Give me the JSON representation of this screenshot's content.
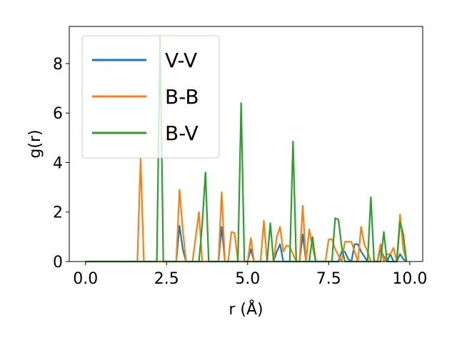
{
  "chart_data": {
    "type": "line",
    "title": "",
    "xlabel": "r (Å)",
    "ylabel": "g(r)",
    "xlim": [
      -0.5,
      10.4
    ],
    "ylim": [
      0,
      9.5
    ],
    "xticks": [
      0.0,
      2.5,
      5.0,
      7.5,
      10.0
    ],
    "xtick_labels": [
      "0.0",
      "2.5",
      "5.0",
      "7.5",
      "10.0"
    ],
    "yticks": [
      0,
      2,
      4,
      6,
      8
    ],
    "ytick_labels": [
      "0",
      "2",
      "4",
      "6",
      "8"
    ],
    "grid": false,
    "legend_position": "top-left",
    "series": [
      {
        "name": "V-V",
        "color": "#1f77b4",
        "x": [
          0.0,
          2.8,
          2.9,
          3.0,
          3.1,
          4.1,
          4.2,
          4.3,
          5.0,
          5.1,
          5.2,
          5.8,
          5.9,
          6.0,
          6.1,
          6.6,
          6.7,
          6.8,
          7.8,
          7.9,
          8.0,
          8.1,
          8.2,
          8.3,
          8.4,
          8.5,
          8.6,
          8.7,
          8.8,
          9.0,
          9.1,
          9.2,
          9.3,
          9.4,
          9.5,
          9.6,
          9.7,
          9.8,
          9.9
        ],
        "y": [
          0.0,
          0.0,
          1.45,
          0.5,
          0.0,
          0.0,
          1.4,
          0.0,
          0.0,
          0.5,
          0.0,
          0.0,
          0.4,
          0.7,
          0.0,
          0.0,
          1.1,
          0.0,
          0.0,
          0.4,
          0.4,
          0.1,
          0.0,
          0.7,
          0.7,
          0.4,
          0.2,
          0.0,
          0.0,
          0.0,
          0.5,
          0.2,
          0.0,
          0.3,
          0.0,
          0.0,
          0.3,
          0.1,
          0.0
        ]
      },
      {
        "name": "B-B",
        "color": "#ff7f0e",
        "x": [
          0.0,
          1.6,
          1.7,
          1.8,
          2.8,
          2.9,
          3.0,
          3.1,
          3.3,
          3.4,
          3.5,
          3.6,
          4.1,
          4.2,
          4.3,
          4.4,
          4.5,
          4.6,
          4.7,
          5.0,
          5.1,
          5.2,
          5.4,
          5.5,
          5.6,
          5.8,
          5.9,
          6.0,
          6.1,
          6.2,
          6.3,
          6.5,
          6.6,
          6.7,
          6.8,
          6.9,
          7.0,
          7.1,
          7.4,
          7.5,
          7.6,
          7.7,
          7.9,
          8.0,
          8.1,
          8.2,
          8.4,
          8.5,
          8.6,
          8.7,
          8.8,
          9.0,
          9.1,
          9.2,
          9.3,
          9.4,
          9.5,
          9.6,
          9.7,
          9.8,
          9.9
        ],
        "y": [
          0.0,
          0.0,
          4.15,
          0.0,
          0.0,
          2.9,
          1.3,
          0.0,
          0.0,
          1.0,
          2.0,
          0.0,
          0.0,
          2.8,
          0.0,
          0.0,
          1.2,
          1.15,
          0.0,
          0.0,
          0.95,
          0.0,
          0.0,
          1.65,
          0.0,
          0.0,
          1.0,
          1.4,
          0.4,
          0.65,
          0.6,
          0.0,
          0.0,
          2.25,
          0.0,
          1.3,
          0.6,
          0.0,
          0.0,
          0.9,
          0.9,
          0.5,
          0.0,
          0.8,
          0.8,
          0.8,
          0.0,
          1.4,
          0.7,
          0.4,
          0.0,
          0.0,
          0.7,
          0.0,
          0.3,
          0.3,
          0.55,
          0.0,
          1.9,
          0.5,
          0.0
        ]
      },
      {
        "name": "B-V",
        "color": "#2ca02c",
        "x": [
          0.0,
          2.2,
          2.3,
          2.4,
          3.5,
          3.6,
          3.7,
          3.8,
          4.7,
          4.8,
          4.9,
          5.6,
          5.7,
          5.8,
          6.3,
          6.4,
          6.5,
          6.9,
          7.0,
          7.1,
          7.6,
          7.7,
          7.8,
          7.9,
          8.0,
          8.6,
          8.7,
          8.8,
          8.9,
          9.1,
          9.2,
          9.3,
          9.6,
          9.7,
          9.8,
          9.9
        ],
        "y": [
          0.0,
          0.0,
          9.1,
          0.0,
          0.0,
          1.5,
          3.6,
          0.0,
          0.0,
          6.4,
          0.0,
          0.0,
          1.55,
          0.0,
          0.0,
          4.85,
          0.0,
          0.0,
          1.0,
          0.0,
          0.0,
          1.75,
          1.7,
          0.6,
          0.0,
          0.0,
          0.0,
          2.6,
          0.0,
          0.0,
          1.2,
          0.0,
          0.0,
          1.6,
          1.1,
          0.0
        ]
      }
    ]
  }
}
